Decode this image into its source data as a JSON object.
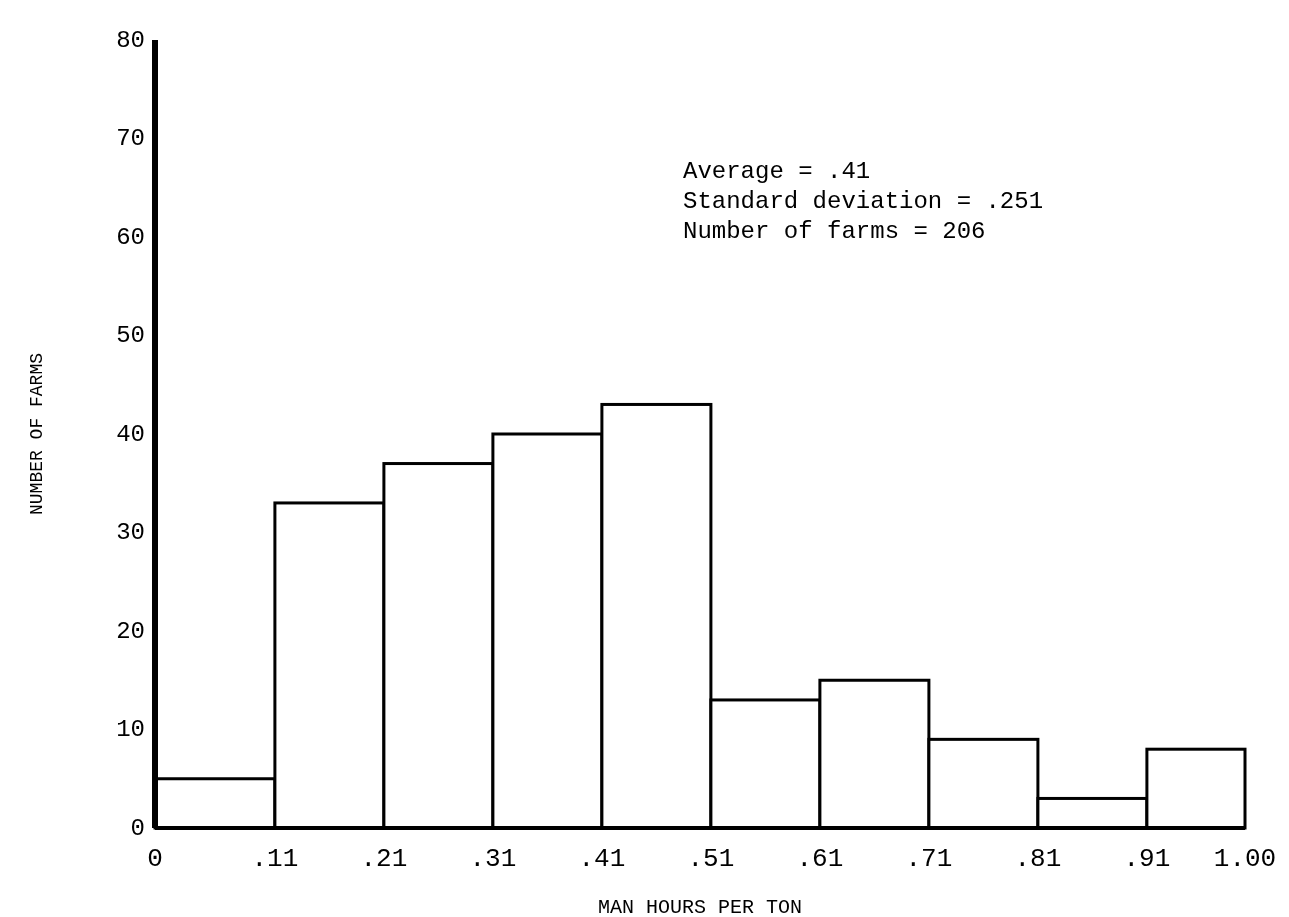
{
  "chart_data": {
    "type": "histogram",
    "xlabel": "MAN HOURS PER TON",
    "ylabel": "NUMBER OF FARMS",
    "bins": [
      0,
      0.11,
      0.21,
      0.31,
      0.41,
      0.51,
      0.61,
      0.71,
      0.81,
      0.91,
      1.0
    ],
    "values": [
      5,
      33,
      37,
      40,
      43,
      13,
      15,
      9,
      3,
      8
    ],
    "color": "#ffffff",
    "xlim": [
      0,
      1.0
    ],
    "xticks": [
      0,
      {
        "value": 0.11,
        "label": ".11"
      },
      {
        "value": 0.21,
        "label": ".21"
      },
      {
        "value": 0.31,
        "label": ".31"
      },
      {
        "value": 0.41,
        "label": ".41"
      },
      {
        "value": 0.51,
        "label": ".51"
      },
      {
        "value": 0.61,
        "label": ".61"
      },
      {
        "value": 0.71,
        "label": ".71"
      },
      {
        "value": 0.81,
        "label": ".81"
      },
      {
        "value": 0.91,
        "label": ".91"
      },
      {
        "value": 1.0,
        "label": "1.00"
      }
    ],
    "ylim": [
      0,
      80
    ],
    "yticks": [
      0,
      10,
      20,
      30,
      40,
      50,
      60,
      70,
      80
    ],
    "annotations": [
      "Average = .41",
      "Standard deviation = .251",
      "Number of farms = 206"
    ],
    "grid": false
  }
}
